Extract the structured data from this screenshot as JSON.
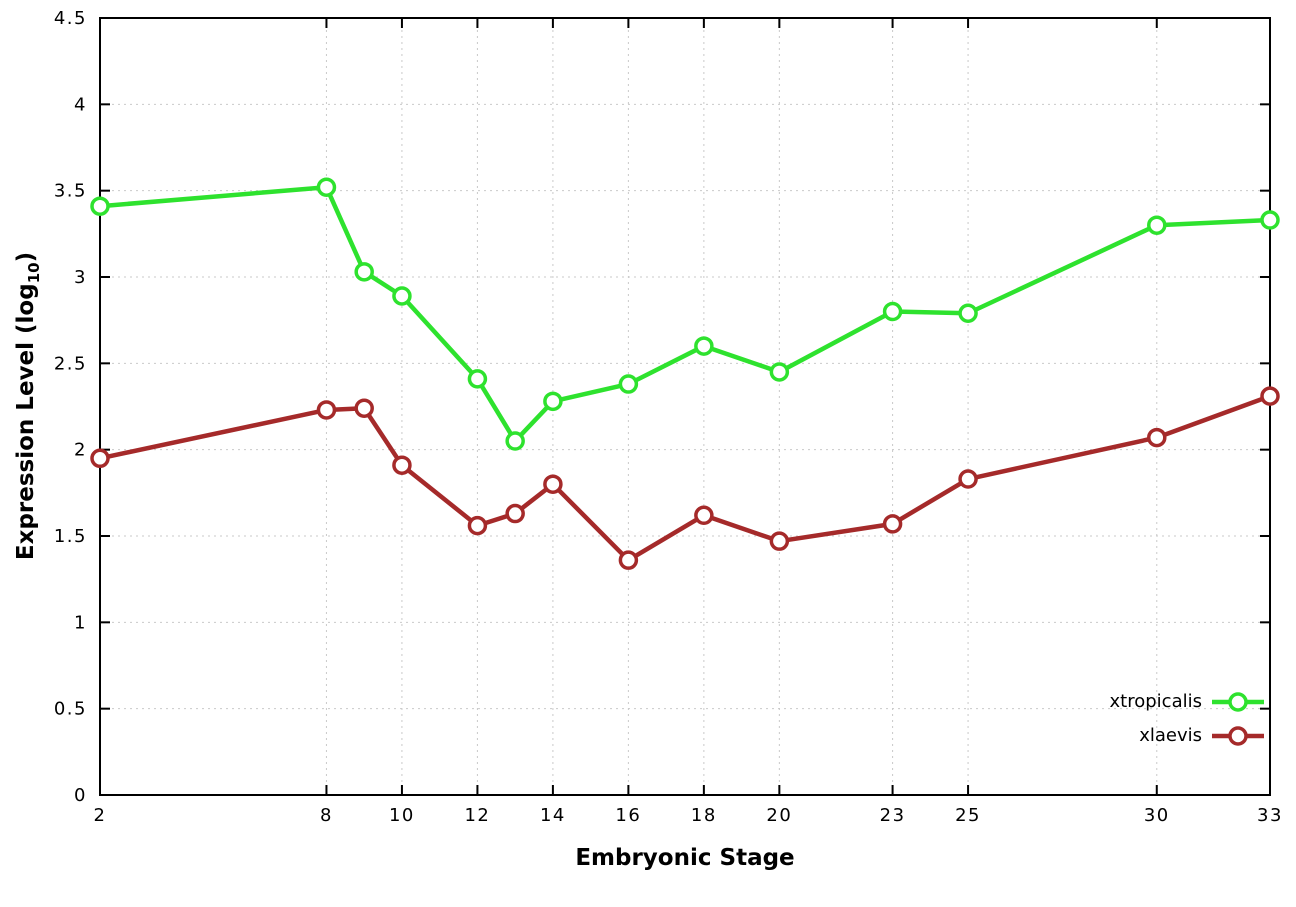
{
  "chart_data": {
    "type": "line",
    "title": "",
    "xlabel": "Embryonic Stage",
    "ylabel": {
      "main": "Expression Level (log",
      "sub": "10",
      "end": ")"
    },
    "x": [
      2,
      8,
      9,
      10,
      12,
      13,
      14,
      16,
      18,
      20,
      23,
      25,
      30,
      33
    ],
    "xticks": [
      2,
      8,
      10,
      12,
      14,
      16,
      18,
      20,
      23,
      25,
      30,
      33
    ],
    "yticks": [
      0,
      0.5,
      1,
      1.5,
      2,
      2.5,
      3,
      3.5,
      4,
      4.5
    ],
    "xlim": [
      2,
      33
    ],
    "ylim": [
      0,
      4.5
    ],
    "grid": true,
    "legend_position": "bottom-right",
    "series": [
      {
        "name": "xtropicalis",
        "color": "#2ee22e",
        "values": [
          3.41,
          3.52,
          3.03,
          2.89,
          2.41,
          2.05,
          2.28,
          2.38,
          2.6,
          2.45,
          2.8,
          2.79,
          3.3,
          3.33
        ]
      },
      {
        "name": "xlaevis",
        "color": "#a52a2a",
        "values": [
          1.95,
          2.23,
          2.24,
          1.91,
          1.56,
          1.63,
          1.8,
          1.36,
          1.62,
          1.47,
          1.57,
          1.83,
          2.07,
          2.31
        ]
      }
    ]
  }
}
